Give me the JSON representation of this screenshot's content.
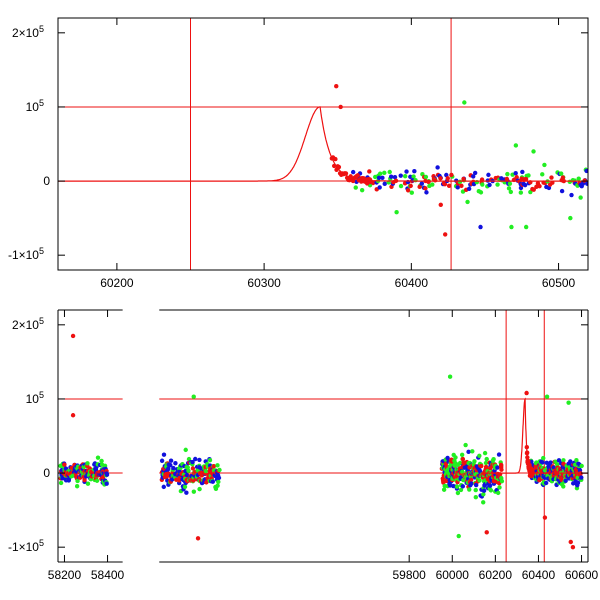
{
  "colors": {
    "red": "#ee1111",
    "green": "#22ee22",
    "blue": "#1111dd",
    "axis": "#000000"
  },
  "chart_data": [
    {
      "type": "scatter",
      "xlim": [
        60160,
        60520
      ],
      "ylim": [
        -120000,
        220000
      ],
      "yticks": [
        {
          "value": -100000,
          "base": "-1×10",
          "exp": "5"
        },
        {
          "value": 0,
          "base": "0",
          "exp": ""
        },
        {
          "value": 100000,
          "base": "10",
          "exp": "5"
        },
        {
          "value": 200000,
          "base": "2×10",
          "exp": "5"
        }
      ],
      "xticks": [
        {
          "value": 60200,
          "label": "60200"
        },
        {
          "value": 60300,
          "label": "60300"
        },
        {
          "value": 60400,
          "label": "60400"
        },
        {
          "value": 60500,
          "label": "60500"
        }
      ],
      "hlines": [
        0,
        100000
      ],
      "vlines": [
        60250,
        60427
      ],
      "model": {
        "peak_x": 60338,
        "peak_y": 100000,
        "rise": 14,
        "decay": 11
      },
      "segments": [
        {
          "x": [
            60360,
            60520
          ],
          "spread": 15000,
          "step": 0.8
        }
      ],
      "outliers": [
        {
          "x": 60349,
          "y": 128000,
          "c": "red"
        },
        {
          "x": 60352,
          "y": 100000,
          "c": "red"
        },
        {
          "x": 60436,
          "y": 106000,
          "c": "green"
        },
        {
          "x": 60420,
          "y": -32000,
          "c": "red"
        },
        {
          "x": 60423,
          "y": -72000,
          "c": "red"
        },
        {
          "x": 60447,
          "y": -62000,
          "c": "blue"
        },
        {
          "x": 60468,
          "y": -62000,
          "c": "green"
        },
        {
          "x": 60478,
          "y": -62000,
          "c": "green"
        },
        {
          "x": 60508,
          "y": -50000,
          "c": "green"
        },
        {
          "x": 60471,
          "y": 48000,
          "c": "green"
        },
        {
          "x": 60483,
          "y": 40000,
          "c": "green"
        },
        {
          "x": 60390,
          "y": -42000,
          "c": "green"
        }
      ]
    },
    {
      "type": "scatter",
      "xlim": [
        58170,
        60630
      ],
      "ylim": [
        -120000,
        220000
      ],
      "break": [
        58470,
        58640
      ],
      "yticks": [
        {
          "value": -100000,
          "base": "-1×10",
          "exp": "5"
        },
        {
          "value": 0,
          "base": "0",
          "exp": ""
        },
        {
          "value": 100000,
          "base": "10",
          "exp": "5"
        },
        {
          "value": 200000,
          "base": "2×10",
          "exp": "5"
        }
      ],
      "xticks": [
        {
          "value": 58200,
          "label": "58200"
        },
        {
          "value": 58400,
          "label": "58400"
        },
        {
          "value": 59800,
          "label": "59800"
        },
        {
          "value": 60000,
          "label": "60000"
        },
        {
          "value": 60200,
          "label": "60200"
        },
        {
          "value": 60400,
          "label": "60400"
        },
        {
          "value": 60600,
          "label": "60600"
        }
      ],
      "hlines": [
        0,
        100000
      ],
      "vlines": [
        60250,
        60427
      ],
      "model": {
        "peak_x": 60338,
        "peak_y": 100000,
        "rise": 14,
        "decay": 11
      },
      "segments": [
        {
          "x": [
            58180,
            58400
          ],
          "spread": 14000,
          "step": 1.2
        },
        {
          "x": [
            58650,
            58920
          ],
          "spread": 18000,
          "step": 1.4
        },
        {
          "x": [
            59950,
            60230
          ],
          "spread": 22000,
          "step": 1.0
        },
        {
          "x": [
            60360,
            60600
          ],
          "spread": 15000,
          "step": 1.0
        }
      ],
      "outliers": [
        {
          "x": 58240,
          "y": 185000,
          "c": "red"
        },
        {
          "x": 58240,
          "y": 78000,
          "c": "red"
        },
        {
          "x": 58800,
          "y": 103000,
          "c": "green"
        },
        {
          "x": 58820,
          "y": -88000,
          "c": "red"
        },
        {
          "x": 59990,
          "y": 130000,
          "c": "green"
        },
        {
          "x": 60345,
          "y": 108000,
          "c": "red"
        },
        {
          "x": 60440,
          "y": 103000,
          "c": "green"
        },
        {
          "x": 60540,
          "y": 95000,
          "c": "green"
        },
        {
          "x": 60550,
          "y": -93000,
          "c": "red"
        },
        {
          "x": 60560,
          "y": -100000,
          "c": "red"
        },
        {
          "x": 60030,
          "y": -85000,
          "c": "green"
        },
        {
          "x": 60160,
          "y": -80000,
          "c": "red"
        },
        {
          "x": 60430,
          "y": -60000,
          "c": "red"
        }
      ]
    }
  ]
}
